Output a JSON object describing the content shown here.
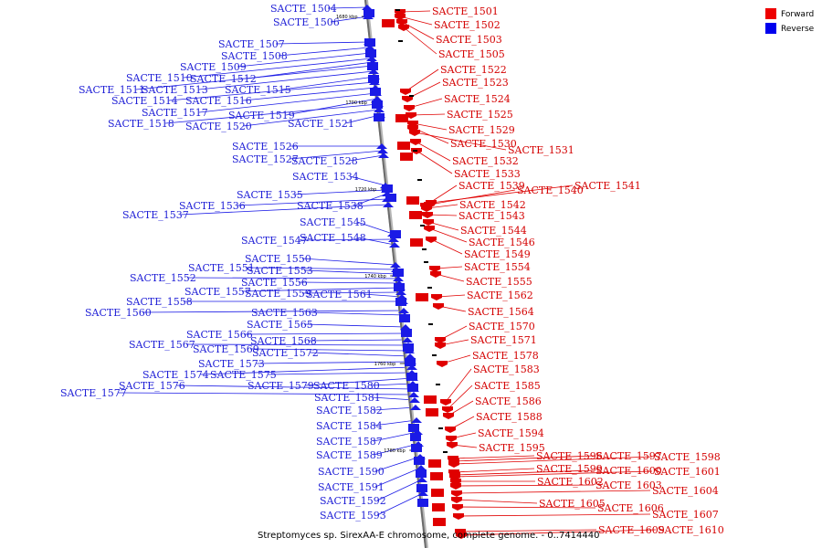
{
  "caption": "Streptomyces sp. SirexAA-E chromosome, complete genome. - 0..7414440",
  "legend": [
    {
      "label": "Forward",
      "color": "#ee0000"
    },
    {
      "label": "Reverse",
      "color": "#0000ee"
    }
  ],
  "scale_marks": [
    "1680 kbp",
    "1700 kbp",
    "1720 kbp",
    "1740 kbp",
    "1760 kbp",
    "1780 kbp"
  ],
  "forward_genes": [
    "SACTE_1501",
    "SACTE_1502",
    "SACTE_1503",
    "SACTE_1505",
    "SACTE_1522",
    "SACTE_1523",
    "SACTE_1524",
    "SACTE_1525",
    "SACTE_1529",
    "SACTE_1530",
    "SACTE_1531",
    "SACTE_1532",
    "SACTE_1533",
    "SACTE_1539",
    "SACTE_1540",
    "SACTE_1541",
    "SACTE_1542",
    "SACTE_1543",
    "SACTE_1544",
    "SACTE_1546",
    "SACTE_1549",
    "SACTE_1554",
    "SACTE_1555",
    "SACTE_1562",
    "SACTE_1564",
    "SACTE_1570",
    "SACTE_1571",
    "SACTE_1578",
    "SACTE_1583",
    "SACTE_1585",
    "SACTE_1586",
    "SACTE_1588",
    "SACTE_1594",
    "SACTE_1595",
    "SACTE_1596",
    "SACTE_1597",
    "SACTE_1598",
    "SACTE_1599",
    "SACTE_1600",
    "SACTE_1601",
    "SACTE_1602",
    "SACTE_1603",
    "SACTE_1604",
    "SACTE_1605",
    "SACTE_1606",
    "SACTE_1607",
    "SACTE_1609",
    "SACTE_1610"
  ],
  "reverse_genes": [
    "SACTE_1504",
    "SACTE_1506",
    "SACTE_1507",
    "SACTE_1508",
    "SACTE_1509",
    "SACTE_1510",
    "SACTE_1512",
    "SACTE_1511",
    "SACTE_1513",
    "SACTE_1515",
    "SACTE_1514",
    "SACTE_1516",
    "SACTE_1517",
    "SACTE_1519",
    "SACTE_1518",
    "SACTE_1520",
    "SACTE_1521",
    "SACTE_1526",
    "SACTE_1527",
    "SACTE_1528",
    "SACTE_1534",
    "SACTE_1535",
    "SACTE_1538",
    "SACTE_1536",
    "SACTE_1537",
    "SACTE_1545",
    "SACTE_1547",
    "SACTE_1548",
    "SACTE_1550",
    "SACTE_1551",
    "SACTE_1553",
    "SACTE_1552",
    "SACTE_1556",
    "SACTE_1557",
    "SACTE_1559",
    "SACTE_1561",
    "SACTE_1558",
    "SACTE_1560",
    "SACTE_1563",
    "SACTE_1565",
    "SACTE_1566",
    "SACTE_1568",
    "SACTE_1567",
    "SACTE_1569",
    "SACTE_1572",
    "SACTE_1573",
    "SACTE_1574",
    "SACTE_1575",
    "SACTE_1579",
    "SACTE_1580",
    "SACTE_1576",
    "SACTE_1577",
    "SACTE_1581",
    "SACTE_1582",
    "SACTE_1584",
    "SACTE_1587",
    "SACTE_1589",
    "SACTE_1590",
    "SACTE_1591",
    "SACTE_1592",
    "SACTE_1593"
  ]
}
